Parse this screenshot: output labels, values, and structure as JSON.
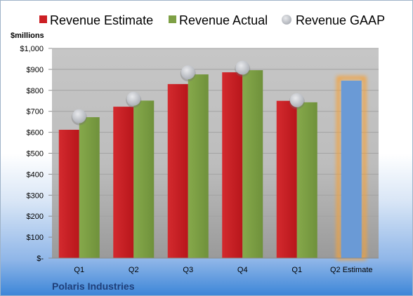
{
  "chart_data": {
    "type": "bar",
    "ylabel": "$millions",
    "ylim": [
      0,
      1000
    ],
    "y_ticks": [
      {
        "value": 0,
        "label": "$-"
      },
      {
        "value": 100,
        "label": "$100"
      },
      {
        "value": 200,
        "label": "$200"
      },
      {
        "value": 300,
        "label": "$300"
      },
      {
        "value": 400,
        "label": "$400"
      },
      {
        "value": 500,
        "label": "$500"
      },
      {
        "value": 600,
        "label": "$600"
      },
      {
        "value": 700,
        "label": "$700"
      },
      {
        "value": 800,
        "label": "$800"
      },
      {
        "value": 900,
        "label": "$900"
      },
      {
        "value": 1000,
        "label": "$1,000"
      }
    ],
    "categories": [
      "Q1",
      "Q2",
      "Q3",
      "Q4",
      "Q1",
      "Q2 Estimate"
    ],
    "series": [
      {
        "name": "Revenue Estimate",
        "type": "bar",
        "color": "#cc1f24",
        "values": [
          612,
          722,
          830,
          886,
          750,
          846
        ]
      },
      {
        "name": "Revenue Actual",
        "type": "bar",
        "color": "#7ea045",
        "values": [
          672,
          751,
          876,
          896,
          743,
          null
        ]
      },
      {
        "name": "Revenue GAAP",
        "type": "marker",
        "color": "#b9bdc4",
        "values": [
          677,
          760,
          886,
          908,
          753,
          null
        ]
      }
    ],
    "highlight": {
      "category_index": 5,
      "bar_color": "#6a9ad6",
      "glow_color": "#f4a23a"
    },
    "legend_position": "top",
    "grid": true
  },
  "footer": {
    "company": "Polaris Industries"
  }
}
